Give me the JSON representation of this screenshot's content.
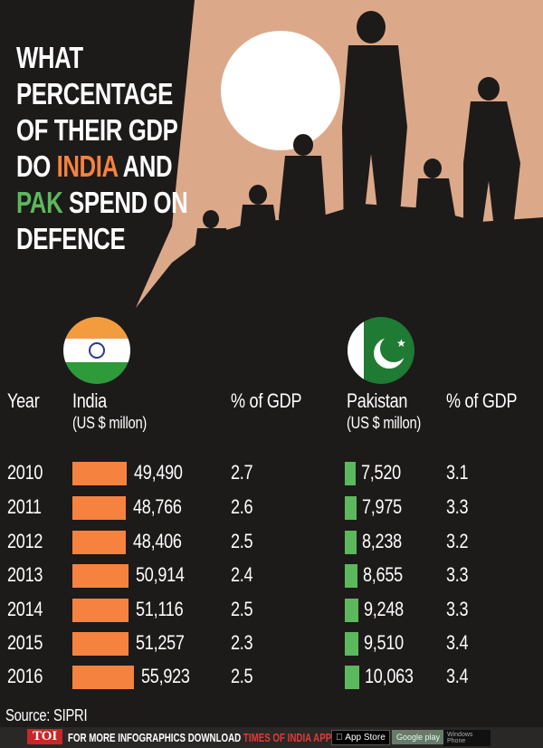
{
  "title": {
    "line1": "WHAT",
    "line2": "PERCENTAGE",
    "line3": "OF THEIR GDP",
    "line4_pre": "DO ",
    "india": "INDIA",
    "line4_post": " AND",
    "pak": "PAK",
    "line5_post": " SPEND ON",
    "line6": "DEFENCE"
  },
  "colors": {
    "india": "#f5833f",
    "pakistan": "#5cb85c",
    "background": "#1d1a1a",
    "sky": "#dba98a"
  },
  "headers": {
    "year": "Year",
    "india": "India",
    "india_unit": "(US $ millon)",
    "india_gdp": "% of GDP",
    "pakistan": "Pakistan",
    "pakistan_unit": "(US $ millon)",
    "pakistan_gdp": "% of GDP"
  },
  "chart_data": {
    "type": "table",
    "categories": [
      "2010",
      "2011",
      "2012",
      "2013",
      "2014",
      "2015",
      "2016"
    ],
    "series": [
      {
        "name": "India",
        "values": [
          49490,
          48766,
          48406,
          50914,
          51116,
          51257,
          55923
        ],
        "labels": [
          "49,490",
          "48,766",
          "48,406",
          "50,914",
          "51,116",
          "51,257",
          "55,923"
        ]
      },
      {
        "name": "India % of GDP",
        "values": [
          2.7,
          2.6,
          2.5,
          2.4,
          2.5,
          2.3,
          2.5
        ]
      },
      {
        "name": "Pakistan",
        "values": [
          7520,
          7975,
          8238,
          8655,
          9248,
          9510,
          10063
        ],
        "labels": [
          "7,520",
          "7,975",
          "8,238",
          "8,655",
          "9,248",
          "9,510",
          "10,063"
        ]
      },
      {
        "name": "Pakistan % of GDP",
        "values": [
          3.1,
          3.3,
          3.2,
          3.3,
          3.3,
          3.4,
          3.4
        ]
      }
    ]
  },
  "source": "Source: SIPRI",
  "footer": {
    "logo": "TOI",
    "text": "FOR MORE INFOGRAPHICS DOWNLOAD ",
    "app": "TIMES OF INDIA APP",
    "appstore": "App Store",
    "googleplay": "Google play",
    "windows": "Windows Phone"
  }
}
